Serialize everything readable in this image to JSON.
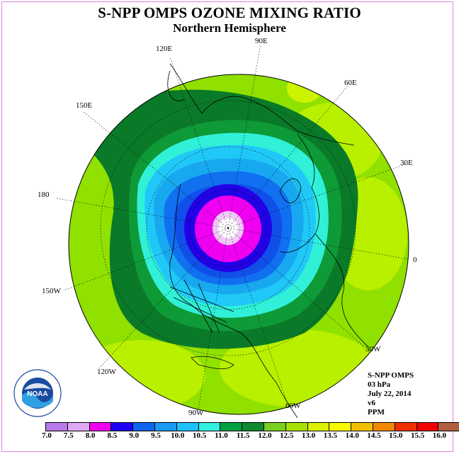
{
  "header": {
    "title": "S-NPP OMPS OZONE MIXING RATIO",
    "subtitle": "Northern Hemisphere"
  },
  "longitude_labels": [
    {
      "id": "lon-90e",
      "text": "90E"
    },
    {
      "id": "lon-60e",
      "text": "60E"
    },
    {
      "id": "lon-30e",
      "text": "30E"
    },
    {
      "id": "lon-0",
      "text": "0"
    },
    {
      "id": "lon-30w",
      "text": "30W"
    },
    {
      "id": "lon-60w",
      "text": "60W"
    },
    {
      "id": "lon-90w",
      "text": "90W"
    },
    {
      "id": "lon-120w",
      "text": "120W"
    },
    {
      "id": "lon-150w",
      "text": "150W"
    },
    {
      "id": "lon-180",
      "text": "180"
    },
    {
      "id": "lon-150e",
      "text": "150E"
    },
    {
      "id": "lon-120e",
      "text": "120E"
    }
  ],
  "info": {
    "instrument": "S-NPP OMPS",
    "level": "03 hPa",
    "date": "July 22, 2014",
    "version": "v6",
    "units": "PPM"
  },
  "logo": {
    "text": "NOAA",
    "icon": "noaa-logo-icon"
  },
  "colorbar": {
    "ticks": [
      "7.0",
      "7.5",
      "8.0",
      "8.5",
      "9.0",
      "9.5",
      "10.0",
      "10.5",
      "11.0",
      "11.5",
      "12.0",
      "12.5",
      "13.0",
      "13.5",
      "14.0",
      "14.5",
      "15.0",
      "15.5",
      "16.0"
    ],
    "colors": [
      "#b87ae8",
      "#e0a8f0",
      "#f000f0",
      "#2000f0",
      "#1064f0",
      "#1a9af5",
      "#20c0f8",
      "#30f0e0",
      "#00a040",
      "#108830",
      "#7ad020",
      "#a8e000",
      "#ddf000",
      "#f8f800",
      "#f0c000",
      "#f08800",
      "#f03000",
      "#f00000",
      "#b06040"
    ]
  },
  "map": {
    "projection": "polar stereographic, north pole",
    "field_rings_ppm": [
      8.0,
      8.5,
      9.0,
      9.5,
      10.0,
      10.5,
      11.0,
      11.5,
      12.0,
      12.5
    ]
  }
}
